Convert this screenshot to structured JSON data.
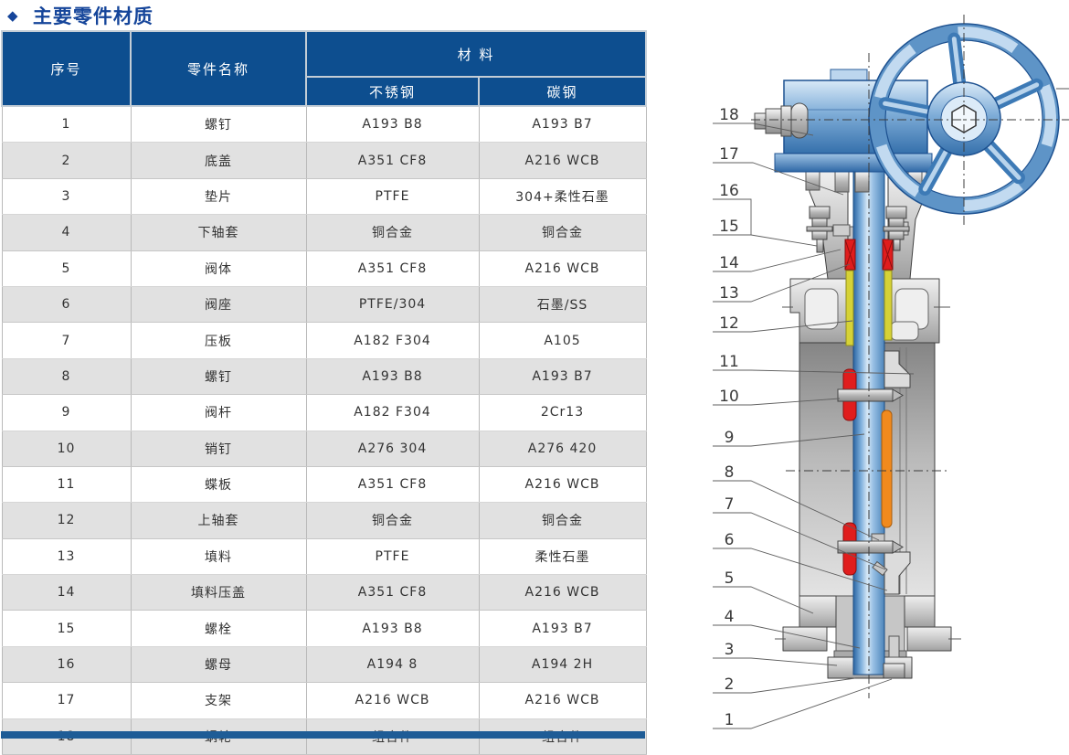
{
  "page": {
    "title_marker": "◆",
    "title": "主要零件材质"
  },
  "table": {
    "headers": {
      "no": "序号",
      "part": "零件名称",
      "material": "材  料",
      "stainless": "不锈钢",
      "carbon": "碳钢"
    },
    "rows": [
      {
        "no": "1",
        "part": "螺钉",
        "ss": "A193 B8",
        "cs": "A193 B7"
      },
      {
        "no": "2",
        "part": "底盖",
        "ss": "A351 CF8",
        "cs": "A216 WCB"
      },
      {
        "no": "3",
        "part": "垫片",
        "ss": "PTFE",
        "cs": "304+柔性石墨"
      },
      {
        "no": "4",
        "part": "下轴套",
        "ss": "铜合金",
        "cs": "铜合金"
      },
      {
        "no": "5",
        "part": "阀体",
        "ss": "A351 CF8",
        "cs": "A216 WCB"
      },
      {
        "no": "6",
        "part": "阀座",
        "ss": "PTFE/304",
        "cs": "石墨/SS"
      },
      {
        "no": "7",
        "part": "压板",
        "ss": "A182 F304",
        "cs": "A105"
      },
      {
        "no": "8",
        "part": "螺钉",
        "ss": "A193 B8",
        "cs": "A193 B7"
      },
      {
        "no": "9",
        "part": "阀杆",
        "ss": "A182 F304",
        "cs": "2Cr13"
      },
      {
        "no": "10",
        "part": "销钉",
        "ss": "A276 304",
        "cs": "A276 420"
      },
      {
        "no": "11",
        "part": "蝶板",
        "ss": "A351 CF8",
        "cs": "A216 WCB"
      },
      {
        "no": "12",
        "part": "上轴套",
        "ss": "铜合金",
        "cs": "铜合金"
      },
      {
        "no": "13",
        "part": "填料",
        "ss": "PTFE",
        "cs": "柔性石墨"
      },
      {
        "no": "14",
        "part": "填料压盖",
        "ss": "A351 CF8",
        "cs": "A216 WCB"
      },
      {
        "no": "15",
        "part": "螺栓",
        "ss": "A193 B8",
        "cs": "A193 B7"
      },
      {
        "no": "16",
        "part": "螺母",
        "ss": "A194 8",
        "cs": "A194 2H"
      },
      {
        "no": "17",
        "part": "支架",
        "ss": "A216 WCB",
        "cs": "A216 WCB"
      },
      {
        "no": "18",
        "part": "蜗轮",
        "ss": "组合件",
        "cs": "组合件"
      }
    ]
  },
  "diagram": {
    "callout_numbers": [
      "18",
      "17",
      "16",
      "15",
      "14",
      "13",
      "12",
      "11",
      "10",
      "9",
      "8",
      "7",
      "6",
      "5",
      "4",
      "3",
      "2",
      "1"
    ]
  },
  "colors": {
    "header_blue": "#0d4e8f",
    "title_blue": "#15459a",
    "row_alt_gray": "#e1e1e1",
    "bottom_bar_blue": "#1e5c96",
    "valve_blue": "#4a86c0",
    "packing_red": "#e01d1d",
    "seat_orange": "#f18a1e",
    "bushing_yellow": "#d6d237"
  }
}
